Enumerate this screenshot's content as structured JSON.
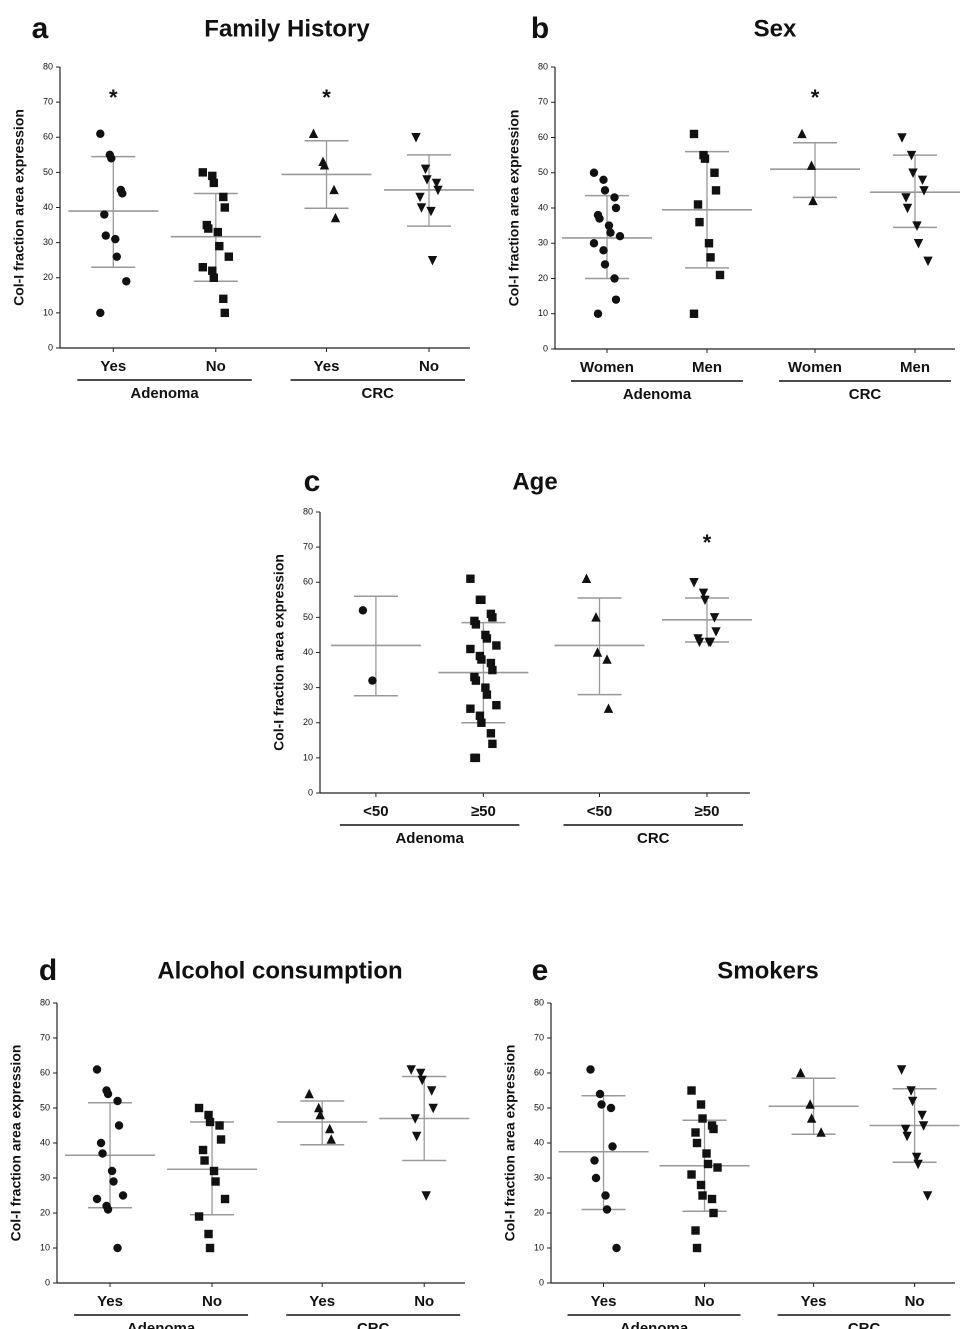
{
  "chart_data": [
    {
      "type": "dotplot",
      "panel": "a",
      "title": "Family History",
      "y_label": "Col-I fraction area expression",
      "ylim": [
        0,
        80
      ],
      "yticks": [
        0,
        10,
        20,
        30,
        40,
        50,
        60,
        70,
        80
      ],
      "groups": [
        {
          "name": "Adenoma",
          "categories": [
            {
              "name": "Yes",
              "marker": "circle",
              "annotation": "*",
              "values": [
                61,
                55,
                54,
                45,
                44,
                38,
                32,
                31,
                26,
                19,
                10
              ],
              "mean": 39,
              "sd_upper": 54.5,
              "sd_lower": 23
            },
            {
              "name": "No",
              "marker": "square",
              "values": [
                50,
                49,
                47,
                43,
                40,
                35,
                34,
                33,
                29,
                26,
                23,
                22,
                20,
                14,
                10
              ],
              "mean": 31.7,
              "sd_upper": 44,
              "sd_lower": 19
            }
          ]
        },
        {
          "name": "CRC",
          "categories": [
            {
              "name": "Yes",
              "marker": "triangle-up",
              "annotation": "*",
              "values": [
                61,
                53,
                52,
                45,
                37
              ],
              "mean": 49.4,
              "sd_upper": 59,
              "sd_lower": 39.8
            },
            {
              "name": "No",
              "marker": "triangle-down",
              "values": [
                60,
                51,
                48,
                47,
                45,
                43,
                40,
                39,
                25
              ],
              "mean": 45,
              "sd_upper": 55,
              "sd_lower": 34.7
            }
          ]
        }
      ]
    },
    {
      "type": "dotplot",
      "panel": "b",
      "title": "Sex",
      "y_label": "Col-I fraction area expression",
      "ylim": [
        0,
        80
      ],
      "yticks": [
        0,
        10,
        20,
        30,
        40,
        50,
        60,
        70,
        80
      ],
      "groups": [
        {
          "name": "Adenoma",
          "categories": [
            {
              "name": "Women",
              "marker": "circle",
              "values": [
                50,
                48,
                45,
                43,
                40,
                38,
                37,
                35,
                33,
                32,
                30,
                28,
                24,
                20,
                14,
                10
              ],
              "mean": 31.5,
              "sd_upper": 43.5,
              "sd_lower": 20
            },
            {
              "name": "Men",
              "marker": "square",
              "values": [
                61,
                55,
                54,
                50,
                45,
                41,
                36,
                30,
                26,
                21,
                10
              ],
              "mean": 39.5,
              "sd_upper": 56,
              "sd_lower": 23
            }
          ]
        },
        {
          "name": "CRC",
          "categories": [
            {
              "name": "Women",
              "marker": "triangle-up",
              "annotation": "*",
              "values": [
                61,
                52,
                42
              ],
              "mean": 51,
              "sd_upper": 58.5,
              "sd_lower": 43
            },
            {
              "name": "Men",
              "marker": "triangle-down",
              "values": [
                60,
                55,
                50,
                48,
                45,
                43,
                40,
                35,
                30,
                25
              ],
              "mean": 44.5,
              "sd_upper": 55,
              "sd_lower": 34.5
            }
          ]
        }
      ]
    },
    {
      "type": "dotplot",
      "panel": "c",
      "title": "Age",
      "y_label": "Col-I fraction area expression",
      "ylim": [
        0,
        80
      ],
      "yticks": [
        0,
        10,
        20,
        30,
        40,
        50,
        60,
        70,
        80
      ],
      "groups": [
        {
          "name": "Adenoma",
          "categories": [
            {
              "name": "<50",
              "marker": "circle",
              "values": [
                52,
                32
              ],
              "mean": 42,
              "sd_upper": 56,
              "sd_lower": 27.7
            },
            {
              "name": "≥50",
              "marker": "square",
              "values": [
                61,
                55,
                55,
                51,
                50,
                49,
                48,
                45,
                44,
                42,
                41,
                39,
                38,
                37,
                35,
                33,
                32,
                30,
                28,
                25,
                24,
                22,
                20,
                17,
                14,
                10,
                10
              ],
              "mean": 34.3,
              "sd_upper": 48.5,
              "sd_lower": 20
            }
          ]
        },
        {
          "name": "CRC",
          "categories": [
            {
              "name": "<50",
              "marker": "triangle-up",
              "values": [
                61,
                50,
                40,
                38,
                24
              ],
              "mean": 42,
              "sd_upper": 55.5,
              "sd_lower": 28
            },
            {
              "name": "≥50",
              "marker": "triangle-down",
              "annotation": "*",
              "values": [
                60,
                57,
                55,
                50,
                46,
                44,
                43,
                43,
                43
              ],
              "mean": 49.3,
              "sd_upper": 55.5,
              "sd_lower": 43
            }
          ]
        }
      ]
    },
    {
      "type": "dotplot",
      "panel": "d",
      "title": "Alcohol consumption",
      "y_label": "Col-I fraction area expression",
      "ylim": [
        0,
        80
      ],
      "yticks": [
        0,
        10,
        20,
        30,
        40,
        50,
        60,
        70,
        80
      ],
      "groups": [
        {
          "name": "Adenoma",
          "categories": [
            {
              "name": "Yes",
              "marker": "circle",
              "values": [
                61,
                55,
                54,
                52,
                45,
                40,
                37,
                32,
                29,
                25,
                24,
                22,
                21,
                10
              ],
              "mean": 36.5,
              "sd_upper": 51.5,
              "sd_lower": 21.5
            },
            {
              "name": "No",
              "marker": "square",
              "values": [
                50,
                48,
                46,
                45,
                41,
                38,
                35,
                32,
                29,
                24,
                19,
                14,
                10
              ],
              "mean": 32.5,
              "sd_upper": 46,
              "sd_lower": 19.5
            }
          ]
        },
        {
          "name": "CRC",
          "categories": [
            {
              "name": "Yes",
              "marker": "triangle-up",
              "values": [
                54,
                50,
                48,
                44,
                41
              ],
              "mean": 46,
              "sd_upper": 52,
              "sd_lower": 39.5
            },
            {
              "name": "No",
              "marker": "triangle-down",
              "values": [
                61,
                60,
                58,
                55,
                50,
                47,
                42,
                25
              ],
              "mean": 47,
              "sd_upper": 59,
              "sd_lower": 35
            }
          ]
        }
      ]
    },
    {
      "type": "dotplot",
      "panel": "e",
      "title": "Smokers",
      "y_label": "Col-I fraction area expression",
      "ylim": [
        0,
        80
      ],
      "yticks": [
        0,
        10,
        20,
        30,
        40,
        50,
        60,
        70,
        80
      ],
      "groups": [
        {
          "name": "Adenoma",
          "categories": [
            {
              "name": "Yes",
              "marker": "circle",
              "values": [
                61,
                54,
                51,
                50,
                39,
                35,
                30,
                25,
                21,
                10
              ],
              "mean": 37.5,
              "sd_upper": 53.5,
              "sd_lower": 21
            },
            {
              "name": "No",
              "marker": "square",
              "values": [
                55,
                51,
                47,
                45,
                44,
                43,
                40,
                37,
                34,
                33,
                31,
                28,
                25,
                24,
                20,
                15,
                10
              ],
              "mean": 33.5,
              "sd_upper": 46.5,
              "sd_lower": 20.5
            }
          ]
        },
        {
          "name": "CRC",
          "categories": [
            {
              "name": "Yes",
              "marker": "triangle-up",
              "values": [
                60,
                51,
                47,
                43
              ],
              "mean": 50.5,
              "sd_upper": 58.5,
              "sd_lower": 42.5
            },
            {
              "name": "No",
              "marker": "triangle-down",
              "values": [
                61,
                55,
                52,
                48,
                45,
                44,
                42,
                36,
                34,
                25
              ],
              "mean": 45,
              "sd_upper": 55.5,
              "sd_lower": 34.5
            }
          ]
        }
      ]
    }
  ]
}
